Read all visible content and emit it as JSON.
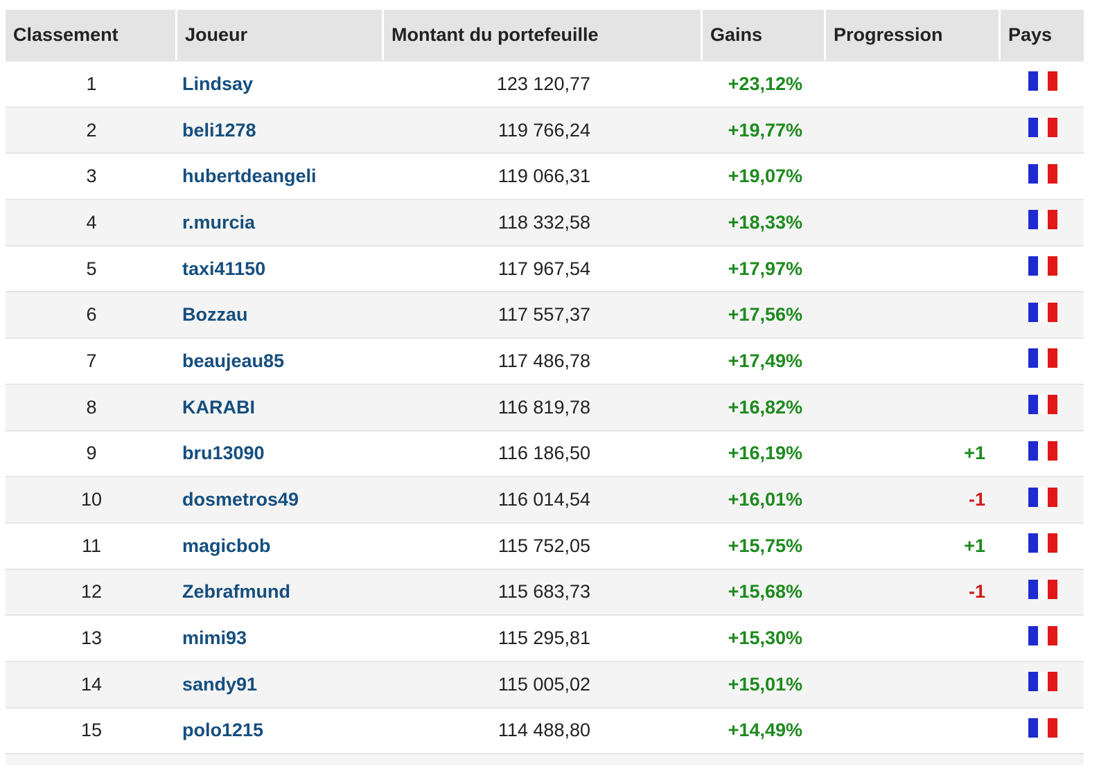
{
  "headers": {
    "rank": "Classement",
    "player": "Joueur",
    "amount": "Montant du portefeuille",
    "gains": "Gains",
    "progression": "Progression",
    "country": "Pays"
  },
  "colors": {
    "player_link": "#154e7e",
    "positive": "#1e8a1e",
    "negative": "#d11a1a",
    "header_bg": "#e4e4e4",
    "stripe_bg": "#f4f4f4"
  },
  "rows": [
    {
      "rank": "1",
      "player": "Lindsay",
      "amount": "123 120,77",
      "gains": "+23,12%",
      "progression": "",
      "country_icon": "france-flag-icon"
    },
    {
      "rank": "2",
      "player": "beli1278",
      "amount": "119 766,24",
      "gains": "+19,77%",
      "progression": "",
      "country_icon": "france-flag-icon"
    },
    {
      "rank": "3",
      "player": "hubertdeangeli",
      "amount": "119 066,31",
      "gains": "+19,07%",
      "progression": "",
      "country_icon": "france-flag-icon"
    },
    {
      "rank": "4",
      "player": "r.murcia",
      "amount": "118 332,58",
      "gains": "+18,33%",
      "progression": "",
      "country_icon": "france-flag-icon"
    },
    {
      "rank": "5",
      "player": "taxi41150",
      "amount": "117 967,54",
      "gains": "+17,97%",
      "progression": "",
      "country_icon": "france-flag-icon"
    },
    {
      "rank": "6",
      "player": "Bozzau",
      "amount": "117 557,37",
      "gains": "+17,56%",
      "progression": "",
      "country_icon": "france-flag-icon"
    },
    {
      "rank": "7",
      "player": "beaujeau85",
      "amount": "117 486,78",
      "gains": "+17,49%",
      "progression": "",
      "country_icon": "france-flag-icon"
    },
    {
      "rank": "8",
      "player": "KARABI",
      "amount": "116 819,78",
      "gains": "+16,82%",
      "progression": "",
      "country_icon": "france-flag-icon"
    },
    {
      "rank": "9",
      "player": "bru13090",
      "amount": "116 186,50",
      "gains": "+16,19%",
      "progression": "+1",
      "country_icon": "france-flag-icon"
    },
    {
      "rank": "10",
      "player": "dosmetros49",
      "amount": "116 014,54",
      "gains": "+16,01%",
      "progression": "-1",
      "country_icon": "france-flag-icon"
    },
    {
      "rank": "11",
      "player": "magicbob",
      "amount": "115 752,05",
      "gains": "+15,75%",
      "progression": "+1",
      "country_icon": "france-flag-icon"
    },
    {
      "rank": "12",
      "player": "Zebrafmund",
      "amount": "115 683,73",
      "gains": "+15,68%",
      "progression": "-1",
      "country_icon": "france-flag-icon"
    },
    {
      "rank": "13",
      "player": "mimi93",
      "amount": "115 295,81",
      "gains": "+15,30%",
      "progression": "",
      "country_icon": "france-flag-icon"
    },
    {
      "rank": "14",
      "player": "sandy91",
      "amount": "115 005,02",
      "gains": "+15,01%",
      "progression": "",
      "country_icon": "france-flag-icon"
    },
    {
      "rank": "15",
      "player": "polo1215",
      "amount": "114 488,80",
      "gains": "+14,49%",
      "progression": "",
      "country_icon": "france-flag-icon"
    }
  ]
}
